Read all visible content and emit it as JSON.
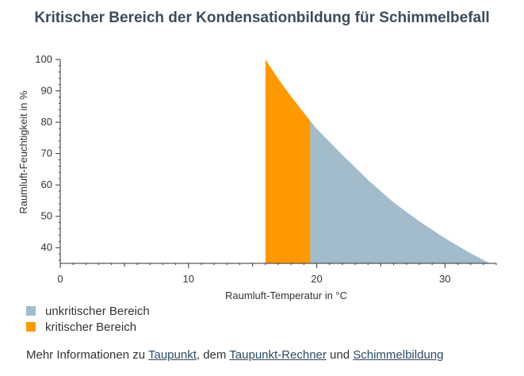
{
  "title": "Kritischer Bereich der Kondensationbildung für Schimmelbefall",
  "chart_data": {
    "type": "area",
    "xlabel": "Raumluft-Temperatur in °C",
    "ylabel": "Raumluft-Feuchtigkeit in %",
    "xlim": [
      0,
      34
    ],
    "ylim": [
      35,
      100
    ],
    "xticks": [
      0,
      10,
      20,
      30
    ],
    "yticks": [
      40,
      50,
      60,
      70,
      80,
      90,
      100
    ],
    "grid": false,
    "legend_position": "bottom-left",
    "series": [
      {
        "name": "kritischer Bereich",
        "color": "#ff9900",
        "x": [
          16,
          17,
          18,
          19,
          19.5
        ],
        "y": [
          100,
          93.8,
          88.2,
          83.0,
          80.4
        ]
      },
      {
        "name": "unkritischer Bereich",
        "color": "#a2bccc",
        "x": [
          19.5,
          20,
          22,
          24,
          26,
          28,
          30,
          32,
          33.5
        ],
        "y": [
          80.4,
          77.9,
          69.6,
          61.6,
          54.4,
          48.4,
          43.0,
          38.2,
          35.0
        ]
      }
    ]
  },
  "footer": {
    "prefix": "Mehr Informationen zu ",
    "link1": "Taupunkt",
    "mid1": ", dem ",
    "link2": "Taupunkt-Rechner",
    "mid2": " und ",
    "link3": "Schimmelbildung"
  }
}
